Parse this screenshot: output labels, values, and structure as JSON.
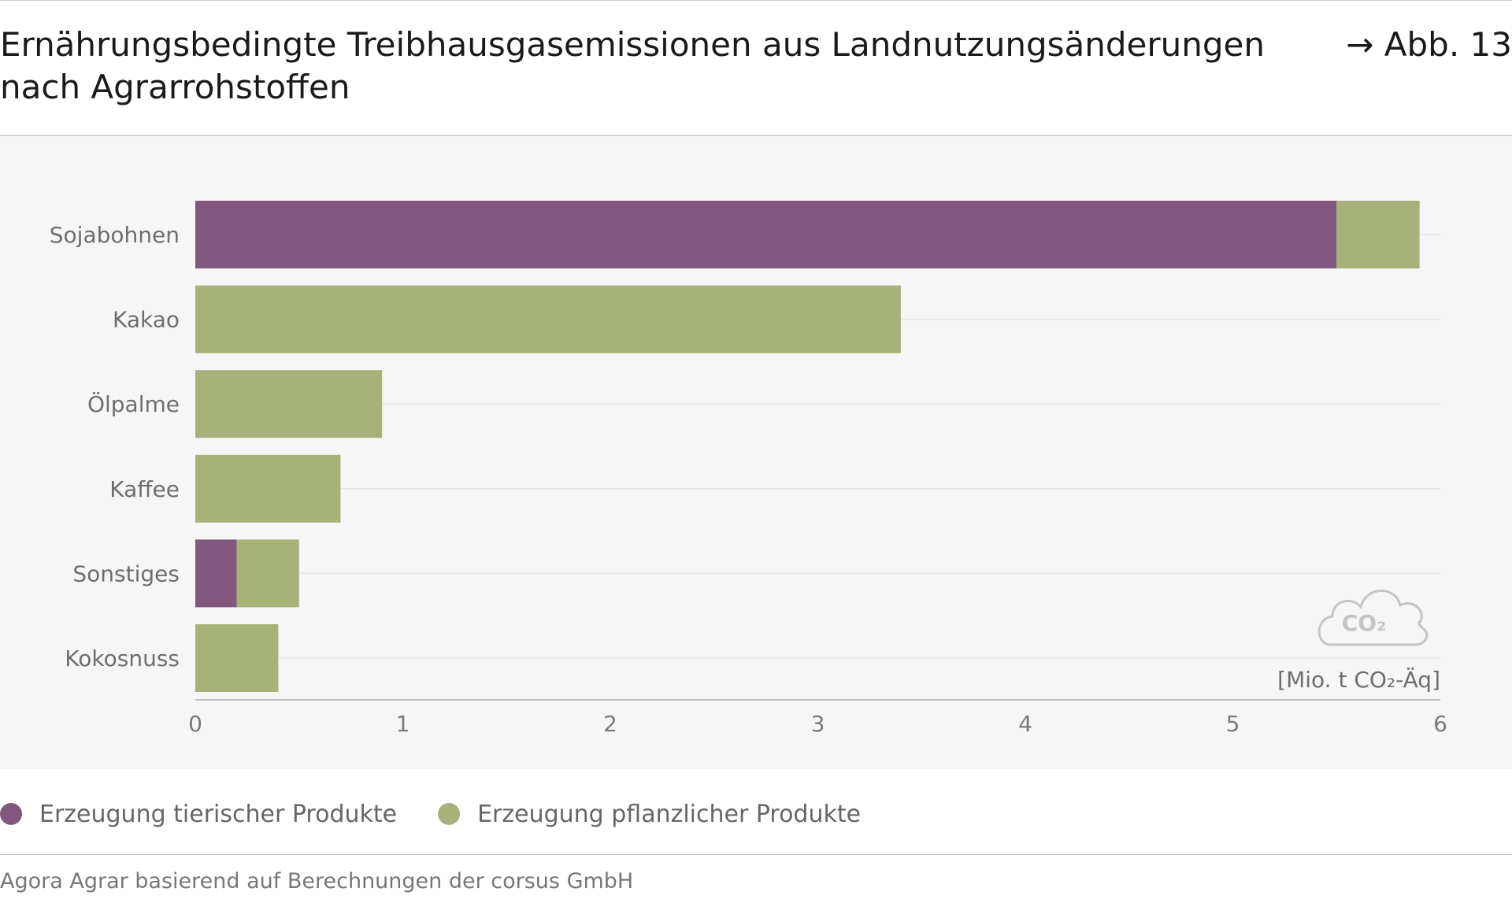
{
  "header": {
    "title_line1": "Ernährungsbedingte Treibhausgasemissionen aus Landnutzungsänderungen",
    "title_line2": "nach Agrarrohstoffen",
    "figure_ref": "→ Abb. 13"
  },
  "chart_data": {
    "type": "bar",
    "orientation": "horizontal",
    "stacked": true,
    "title": "Ernährungsbedingte Treibhausgasemissionen aus Landnutzungsänderungen nach Agrarrohstoffen",
    "categories": [
      "Sojabohnen",
      "Kakao",
      "Ölpalme",
      "Kaffee",
      "Sonstiges",
      "Kokosnuss"
    ],
    "series": [
      {
        "name": "Erzeugung tierischer Produkte",
        "color": "#82577f",
        "values": [
          5.5,
          0,
          0,
          0,
          0.2,
          0
        ]
      },
      {
        "name": "Erzeugung pflanzlicher Produkte",
        "color": "#a6b27a",
        "values": [
          0.4,
          3.4,
          0.9,
          0.7,
          0.3,
          0.4
        ]
      }
    ],
    "xlim": [
      0,
      6
    ],
    "xticks": [
      0,
      1,
      2,
      3,
      4,
      5,
      6
    ],
    "unit_label": "[Mio. t CO₂-Äq]",
    "icon_label": "CO₂",
    "icon": "co2-cloud-icon",
    "grid": true,
    "legend_position": "bottom-left"
  },
  "source": "Agora Agrar basierend auf Berechnungen der corsus GmbH"
}
